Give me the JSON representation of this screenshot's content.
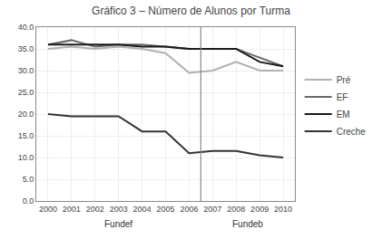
{
  "chart_data": {
    "type": "line",
    "title": "Gráfico 3 – Número de Alunos por Turma",
    "x": [
      2000,
      2001,
      2002,
      2003,
      2004,
      2005,
      2006,
      2007,
      2008,
      2009,
      2010
    ],
    "series": [
      {
        "name": "Pré",
        "color": "#b0b0b0",
        "values": [
          35.0,
          35.5,
          35.0,
          35.5,
          35.0,
          34.0,
          29.5,
          30.0,
          32.0,
          30.0,
          30.0
        ]
      },
      {
        "name": "EF",
        "color": "#696969",
        "values": [
          36.0,
          37.0,
          35.5,
          36.0,
          36.0,
          35.5,
          35.0,
          35.0,
          35.0,
          33.0,
          31.0
        ]
      },
      {
        "name": "EM",
        "color": "#1a1a1a",
        "values": [
          36.0,
          36.0,
          36.0,
          36.0,
          35.5,
          35.5,
          35.0,
          35.0,
          35.0,
          32.0,
          31.0
        ]
      },
      {
        "name": "Creche",
        "color": "#333333",
        "values": [
          20.0,
          19.5,
          19.5,
          19.5,
          16.0,
          16.0,
          11.0,
          11.5,
          11.5,
          10.5,
          10.0
        ]
      }
    ],
    "xlim": [
      1999.5,
      2010.5
    ],
    "xticks": [
      2000,
      2001,
      2002,
      2003,
      2004,
      2005,
      2006,
      2007,
      2008,
      2009,
      2010
    ],
    "ylim": [
      0,
      40
    ],
    "yticks": [
      {
        "value": 0,
        "label": "0.0"
      },
      {
        "value": 5,
        "label": "5.0"
      },
      {
        "value": 10,
        "label": "10.0"
      },
      {
        "value": 15,
        "label": "15.0"
      },
      {
        "value": 20,
        "label": "20.0"
      },
      {
        "value": 25,
        "label": "25.0"
      },
      {
        "value": 30,
        "label": "30.0"
      },
      {
        "value": 35,
        "label": "35.0"
      },
      {
        "value": 40,
        "label": "40.0"
      }
    ],
    "annotations": [
      {
        "text": "Fundef",
        "x": 2003.0
      },
      {
        "text": "Fundeb",
        "x": 2008.5
      }
    ],
    "vlines": [
      2006.5
    ],
    "grid": true,
    "legend": "right"
  }
}
